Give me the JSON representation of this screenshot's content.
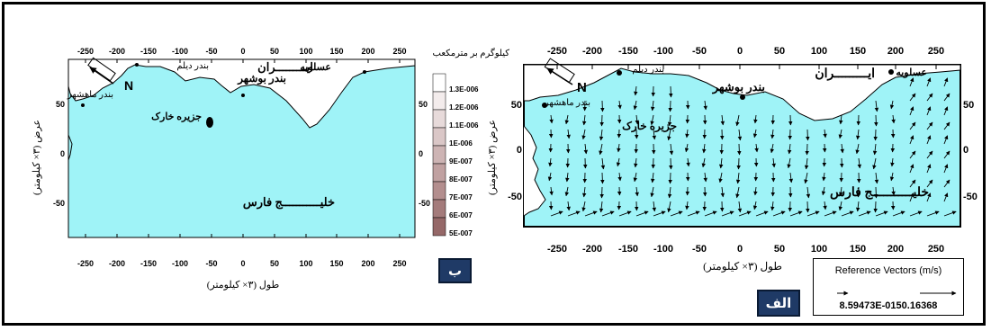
{
  "colors": {
    "sea": "#9ff3f7",
    "land": "#ffffff",
    "badge_bg": "#1f3a66"
  },
  "panel_b": {
    "badge": "ب",
    "top_ticks": [
      "-250",
      "-200",
      "-150",
      "-100",
      "-50",
      "0",
      "50",
      "100",
      "150",
      "200",
      "250"
    ],
    "bottom_ticks": [
      "-250",
      "-200",
      "-150",
      "-100",
      "-50",
      "0",
      "50",
      "100",
      "150",
      "200",
      "250"
    ],
    "left_ticks": [
      "50",
      "0",
      "-50"
    ],
    "right_ticks": [
      "50",
      "0",
      "-50"
    ],
    "xlabel": "طول (۳× کیلومتر)",
    "ylabel": "عرض (۳× کیلومتر)",
    "legend_title": "کیلوگرم بر مترمکعب",
    "legend_values": [
      "1.3E-006",
      "1.2E-006",
      "1.1E-006",
      "1E-006",
      "9E-007",
      "8E-007",
      "7E-007",
      "6E-007",
      "5E-007"
    ],
    "places": {
      "asaluyeh": "عسلویه",
      "iran": "ایـــــــــران",
      "deylam": "بندر دیلم",
      "bushehr": "بندر بوشهر",
      "mahshahr": "بندر ماهشهر",
      "kharg": "جزیره خارک",
      "gulf": "خلیـــــــــــج فارس",
      "north": "N"
    }
  },
  "panel_a": {
    "badge": "الف",
    "top_ticks": [
      "-250",
      "-200",
      "-150",
      "-100",
      "-50",
      "0",
      "50",
      "100",
      "150",
      "200",
      "250"
    ],
    "bottom_ticks": [
      "-250",
      "-200",
      "-150",
      "-100",
      "-50",
      "0",
      "50",
      "100",
      "150",
      "200",
      "250"
    ],
    "left_ticks": [
      "50",
      "0",
      "-50"
    ],
    "right_ticks": [
      "50",
      "0",
      "-50"
    ],
    "xlabel": "طول (۳× کیلومتر)",
    "ylabel": "عرض (۳× کیلومتر)",
    "places": {
      "asaluyeh": "عسلویه",
      "iran": "ایـــــــــران",
      "deylam": "بندر دیلم",
      "bushehr": "بندر بوشهر",
      "mahshahr": "بندر ماهشهر",
      "kharg": "جزیره خارک",
      "gulf": "خلیـــــــــــج فارس",
      "north": "N"
    },
    "reference": {
      "title": "Reference Vectors (m/s)",
      "values": "8.59473E-0150.16368"
    }
  }
}
